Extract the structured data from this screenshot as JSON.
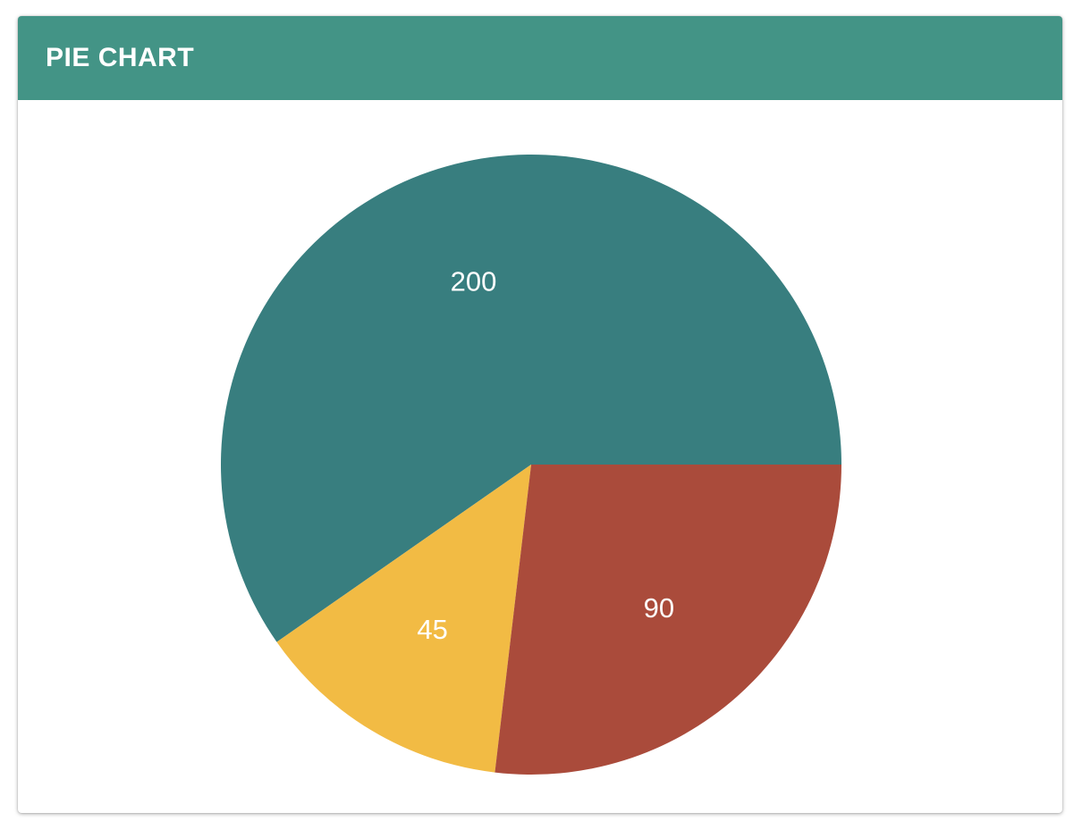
{
  "card": {
    "title": "PIE CHART",
    "header_color": "#439486"
  },
  "chart_data": {
    "type": "pie",
    "title": "PIE CHART",
    "categories": [
      "",
      "",
      ""
    ],
    "values": [
      200,
      45,
      90
    ],
    "labels": [
      "200",
      "45",
      "90"
    ],
    "colors": [
      "#387e7f",
      "#f2bb44",
      "#aa4b3b"
    ],
    "start": "3 o'clock",
    "direction": "counterclockwise",
    "legend": "none"
  }
}
